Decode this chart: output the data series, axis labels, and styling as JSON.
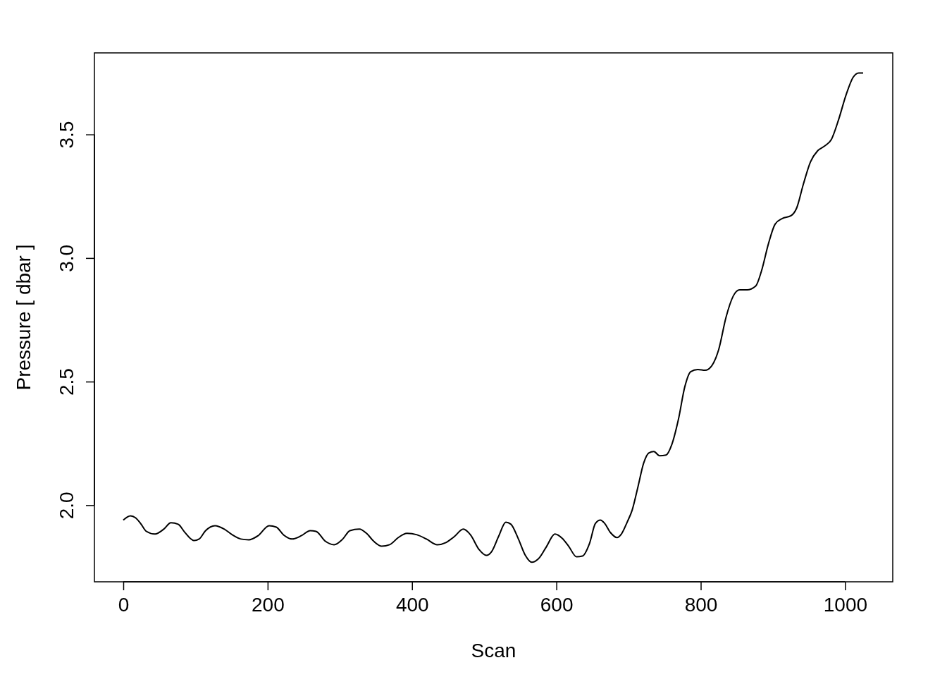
{
  "chart_data": {
    "type": "line",
    "xlabel": "Scan",
    "ylabel": "Pressure [ dbar ]",
    "xlim": [
      -40,
      1066
    ],
    "ylim": [
      1.69,
      3.83
    ],
    "xticks": [
      0,
      200,
      400,
      600,
      800,
      1000
    ],
    "yticks": [
      {
        "value": 2,
        "label": "2.0"
      },
      {
        "value": 2.5,
        "label": "2.5"
      },
      {
        "value": 3,
        "label": "3.0"
      },
      {
        "value": 3.5,
        "label": "3.5"
      }
    ],
    "grid": false,
    "marker": "none",
    "line_style": "solid",
    "series": [
      {
        "color": "#000000",
        "x": [
          0,
          10,
          17,
          24,
          32,
          44,
          56,
          66,
          76,
          85,
          98,
          105,
          114,
          127,
          140,
          151,
          163,
          174,
          187,
          202,
          212,
          222,
          234,
          247,
          259,
          267,
          280,
          292,
          304,
          314,
          327,
          337,
          347,
          358,
          369,
          381,
          393,
          407,
          420,
          435,
          447,
          459,
          471,
          481,
          493,
          503,
          510,
          520,
          530,
          537,
          547,
          557,
          566,
          576,
          586,
          598,
          608,
          617,
          628,
          636,
          646,
          654,
          661,
          667,
          675,
          684,
          690,
          698,
          705,
          713,
          721,
          728,
          735,
          743,
          752,
          760,
          769,
          778,
          786,
          796,
          806,
          815,
          825,
          835,
          845,
          854,
          864,
          876,
          884,
          894,
          903,
          913,
          925,
          933,
          942,
          952,
          962,
          972,
          981,
          991,
          1001,
          1011,
          1019,
          1025
        ],
        "values": [
          1.94,
          1.957,
          1.949,
          1.926,
          1.894,
          1.883,
          1.903,
          1.929,
          1.923,
          1.891,
          1.857,
          1.863,
          1.897,
          1.917,
          1.903,
          1.88,
          1.863,
          1.86,
          1.877,
          1.917,
          1.911,
          1.88,
          1.863,
          1.877,
          1.897,
          1.894,
          1.854,
          1.84,
          1.863,
          1.897,
          1.903,
          1.886,
          1.854,
          1.834,
          1.84,
          1.869,
          1.886,
          1.88,
          1.863,
          1.84,
          1.849,
          1.874,
          1.903,
          1.88,
          1.82,
          1.797,
          1.811,
          1.874,
          1.931,
          1.923,
          1.866,
          1.797,
          1.769,
          1.786,
          1.831,
          1.883,
          1.866,
          1.834,
          1.791,
          1.794,
          1.846,
          1.926,
          1.94,
          1.926,
          1.889,
          1.869,
          1.883,
          1.931,
          1.98,
          2.074,
          2.171,
          2.211,
          2.217,
          2.2,
          2.203,
          2.246,
          2.346,
          2.48,
          2.54,
          2.549,
          2.546,
          2.563,
          2.631,
          2.76,
          2.846,
          2.871,
          2.871,
          2.886,
          2.946,
          3.06,
          3.137,
          3.16,
          3.171,
          3.203,
          3.297,
          3.389,
          3.434,
          3.454,
          3.48,
          3.56,
          3.657,
          3.731,
          3.749,
          3.749
        ]
      }
    ]
  }
}
